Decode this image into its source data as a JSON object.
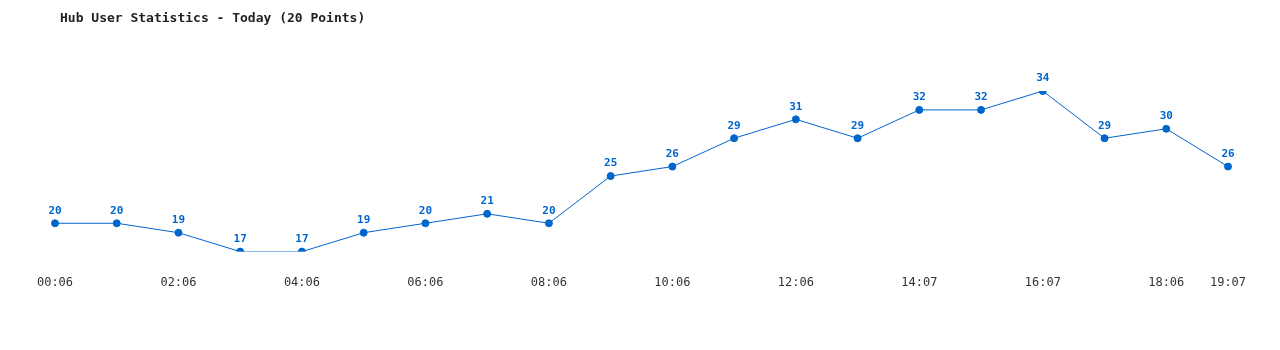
{
  "chart_data": {
    "type": "line",
    "title": "Hub User Statistics - Today (20 Points)",
    "categories": [
      "00:06",
      null,
      "02:06",
      null,
      "04:06",
      null,
      "06:06",
      null,
      "08:06",
      null,
      "10:06",
      null,
      "12:06",
      null,
      "14:07",
      null,
      "16:07",
      null,
      "18:06",
      "19:07"
    ],
    "series": [
      {
        "color": "#0066cc",
        "values": [
          20,
          20,
          19,
          17,
          17,
          19,
          20,
          21,
          20,
          25,
          26,
          29,
          31,
          29,
          32,
          32,
          34,
          29,
          30,
          26
        ]
      }
    ],
    "data_labels": true,
    "marker": "circle",
    "grid": false,
    "legend": false,
    "tick_labels": "x",
    "line_style": "solid"
  }
}
